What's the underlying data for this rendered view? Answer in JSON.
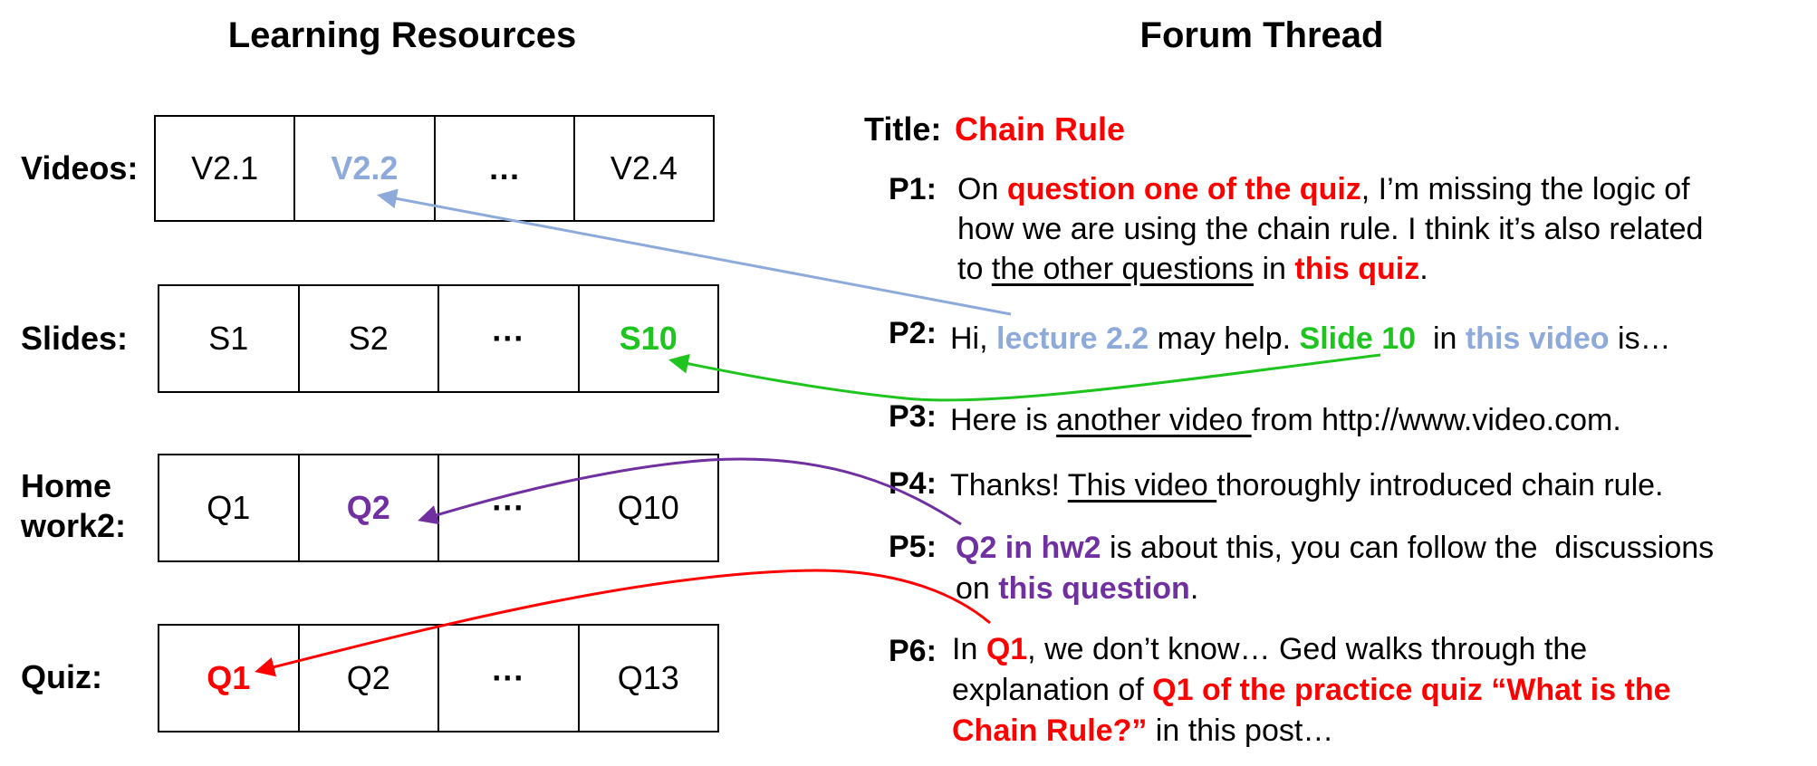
{
  "columns": {
    "left_title": "Learning Resources",
    "right_title": "Forum Thread"
  },
  "resources": [
    {
      "label": [
        "Videos:"
      ],
      "cells": [
        "V2.1",
        "V2.2",
        "…",
        "V2.4"
      ]
    },
    {
      "label": [
        "Slides:"
      ],
      "cells": [
        "S1",
        "S2",
        "···",
        "S10"
      ]
    },
    {
      "label": [
        "Home",
        "work2:"
      ],
      "cells": [
        "Q1",
        "Q2",
        "···",
        "Q10"
      ]
    },
    {
      "label": [
        "Quiz:"
      ],
      "cells": [
        "Q1",
        "Q2",
        "···",
        "Q13"
      ]
    }
  ],
  "forum": {
    "title_label": "Title:",
    "title": "Chain Rule",
    "posts": [
      {
        "label": "P1:",
        "lines": [
          [
            "On ",
            "question one of the quiz",
            ", I’m missing the logic of"
          ],
          [
            "how we are using the chain rule. I think it’s also related"
          ],
          [
            "to ",
            "the other questions",
            " in ",
            "this quiz",
            "."
          ]
        ]
      },
      {
        "label": "P2:",
        "lines": [
          [
            "Hi, ",
            "lecture 2.2",
            " may help. ",
            "Slide 10",
            "  in ",
            "this video",
            " is…"
          ]
        ]
      },
      {
        "label": "P3:",
        "lines": [
          [
            "Here is ",
            "another video ",
            "from http://www.video.com."
          ]
        ]
      },
      {
        "label": "P4:",
        "lines": [
          [
            "Thanks! ",
            "This video ",
            "thoroughly introduced chain rule."
          ]
        ]
      },
      {
        "label": "P5:",
        "lines": [
          [
            "Q2 in hw2",
            " is about this, you can follow the  discussions"
          ],
          [
            "on ",
            "this question",
            "."
          ]
        ]
      },
      {
        "label": "P6:",
        "lines": [
          [
            "In ",
            "Q1",
            ", we don’t know… Ged walks through the"
          ],
          [
            "explanation of ",
            "Q1 of the practice quiz “What is the"
          ],
          [
            "Chain Rule?”",
            " in this post…"
          ]
        ]
      }
    ]
  }
}
